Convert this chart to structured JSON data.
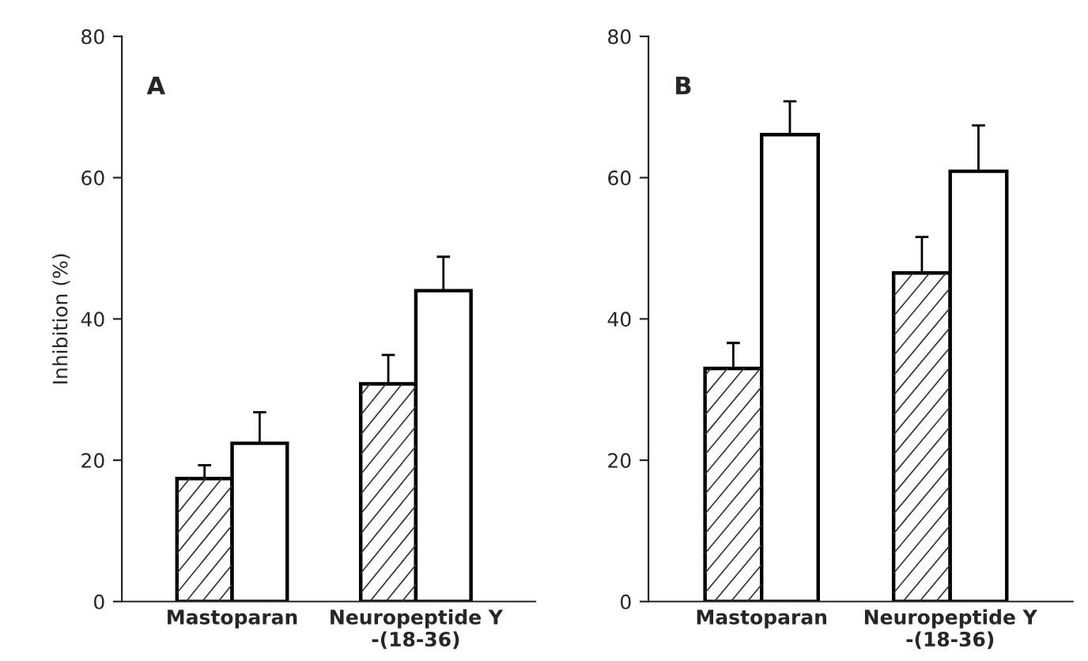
{
  "chart_data": [
    {
      "type": "bar",
      "ylabel": "Inhibition (%)",
      "annotations": [
        "A"
      ],
      "categories": [
        "Mastoparan",
        "Neuropeptide Y\n-(18-36)"
      ],
      "ylim": [
        0,
        80
      ],
      "yticks": [
        0,
        20,
        40,
        60,
        80
      ],
      "grid": false,
      "series": [
        {
          "color": "#ffffff",
          "values": [
            17.4,
            30.8
          ],
          "errors": [
            [
              17.4,
              19.3
            ],
            [
              30.8,
              34.9
            ]
          ]
        },
        {
          "color": "#ffffff",
          "values": [
            22.4,
            44.0
          ],
          "errors": [
            [
              22.4,
              26.8
            ],
            [
              44.0,
              48.8
            ]
          ]
        }
      ]
    },
    {
      "type": "bar",
      "annotations": [
        "B"
      ],
      "categories": [
        "Mastoparan",
        "Neuropeptide Y\n-(18-36)"
      ],
      "ylim": [
        0,
        80
      ],
      "yticks": [
        0,
        20,
        40,
        60,
        80
      ],
      "grid": false,
      "series": [
        {
          "color": "#ffffff",
          "values": [
            33.0,
            46.5
          ],
          "errors": [
            [
              33.0,
              36.6
            ],
            [
              46.5,
              51.6
            ]
          ]
        },
        {
          "color": "#ffffff",
          "values": [
            66.1,
            60.9
          ],
          "errors": [
            [
              66.1,
              70.8
            ],
            [
              60.9,
              67.4
            ]
          ]
        }
      ]
    }
  ]
}
